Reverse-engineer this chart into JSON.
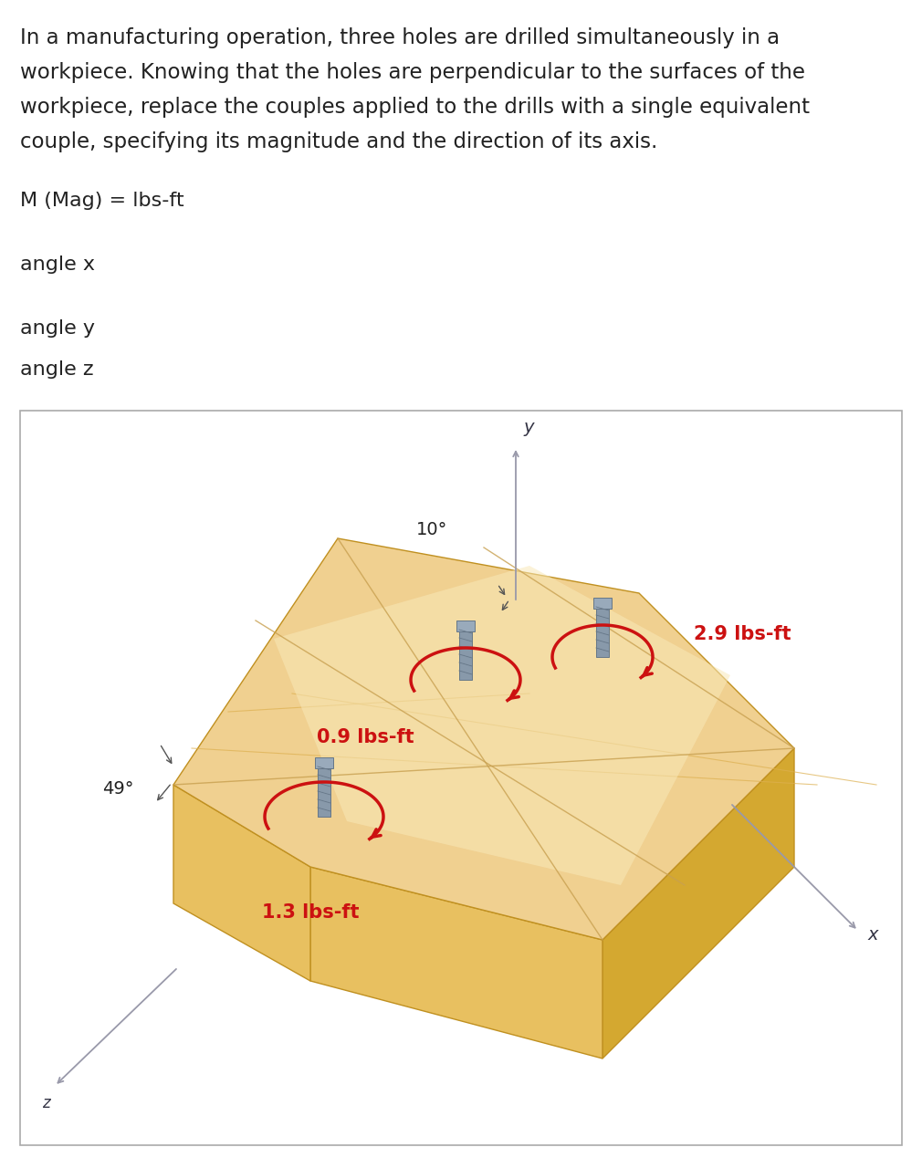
{
  "problem_text_lines": [
    "In a manufacturing operation, three holes are drilled simultaneously in a",
    "workpiece. Knowing that the holes are perpendicular to the surfaces of the",
    "workpiece, replace the couples applied to the drills with a single equivalent",
    "couple, specifying its magnitude and the direction of its axis."
  ],
  "answer_labels": [
    "M (Mag) = lbs-ft",
    "angle x",
    "angle y",
    "angle z"
  ],
  "background_color": "#ffffff",
  "text_color": "#222222",
  "answer_color": "#222222",
  "box_edgecolor": "#aaaaaa",
  "diagram_labels": {
    "y_axis": "y",
    "x_axis": "x",
    "z_axis": "z",
    "angle_top": "10°",
    "angle_left": "49°",
    "couple1": "0.9 lbs-ft",
    "couple2": "1.3 lbs-ft",
    "couple3": "2.9 lbs-ft"
  },
  "couple_color": "#cc1111",
  "axis_line_color": "#9999aa",
  "axis_text_color": "#333344",
  "wood_top_color": "#f0d090",
  "wood_top_light": "#f8e8b8",
  "wood_side_front_color": "#e8c060",
  "wood_side_right_color": "#d4a830",
  "wood_bottom_color": "#e0b840",
  "wood_grain_color": "#ddb050",
  "drill_body_color": "#8899aa",
  "drill_shade_color": "#667788",
  "angle_tick_color": "#555555",
  "line_color_grid": "#c8a050"
}
